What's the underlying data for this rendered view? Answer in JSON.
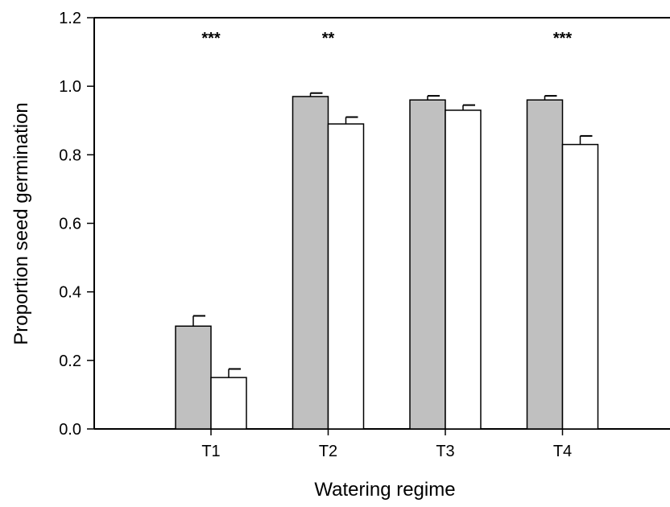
{
  "chart_data": {
    "type": "bar",
    "title": "",
    "xlabel": "Watering regime",
    "ylabel": "Proportion seed germination",
    "categories": [
      "T1",
      "T2",
      "T3",
      "T4"
    ],
    "series": [
      {
        "color": "#c0c0c0",
        "values": [
          0.3,
          0.97,
          0.96,
          0.96
        ],
        "errors": [
          0.03,
          0.01,
          0.012,
          0.012
        ]
      },
      {
        "color": "#ffffff",
        "values": [
          0.15,
          0.89,
          0.93,
          0.83
        ],
        "errors": [
          0.025,
          0.02,
          0.015,
          0.025
        ]
      }
    ],
    "significance": [
      "***",
      "**",
      "",
      "***"
    ],
    "ylim": [
      0,
      1.2
    ],
    "yticks": [
      "0.0",
      "0.2",
      "0.4",
      "0.6",
      "0.8",
      "1.0",
      "1.2"
    ],
    "grid": false,
    "legend": "none"
  }
}
